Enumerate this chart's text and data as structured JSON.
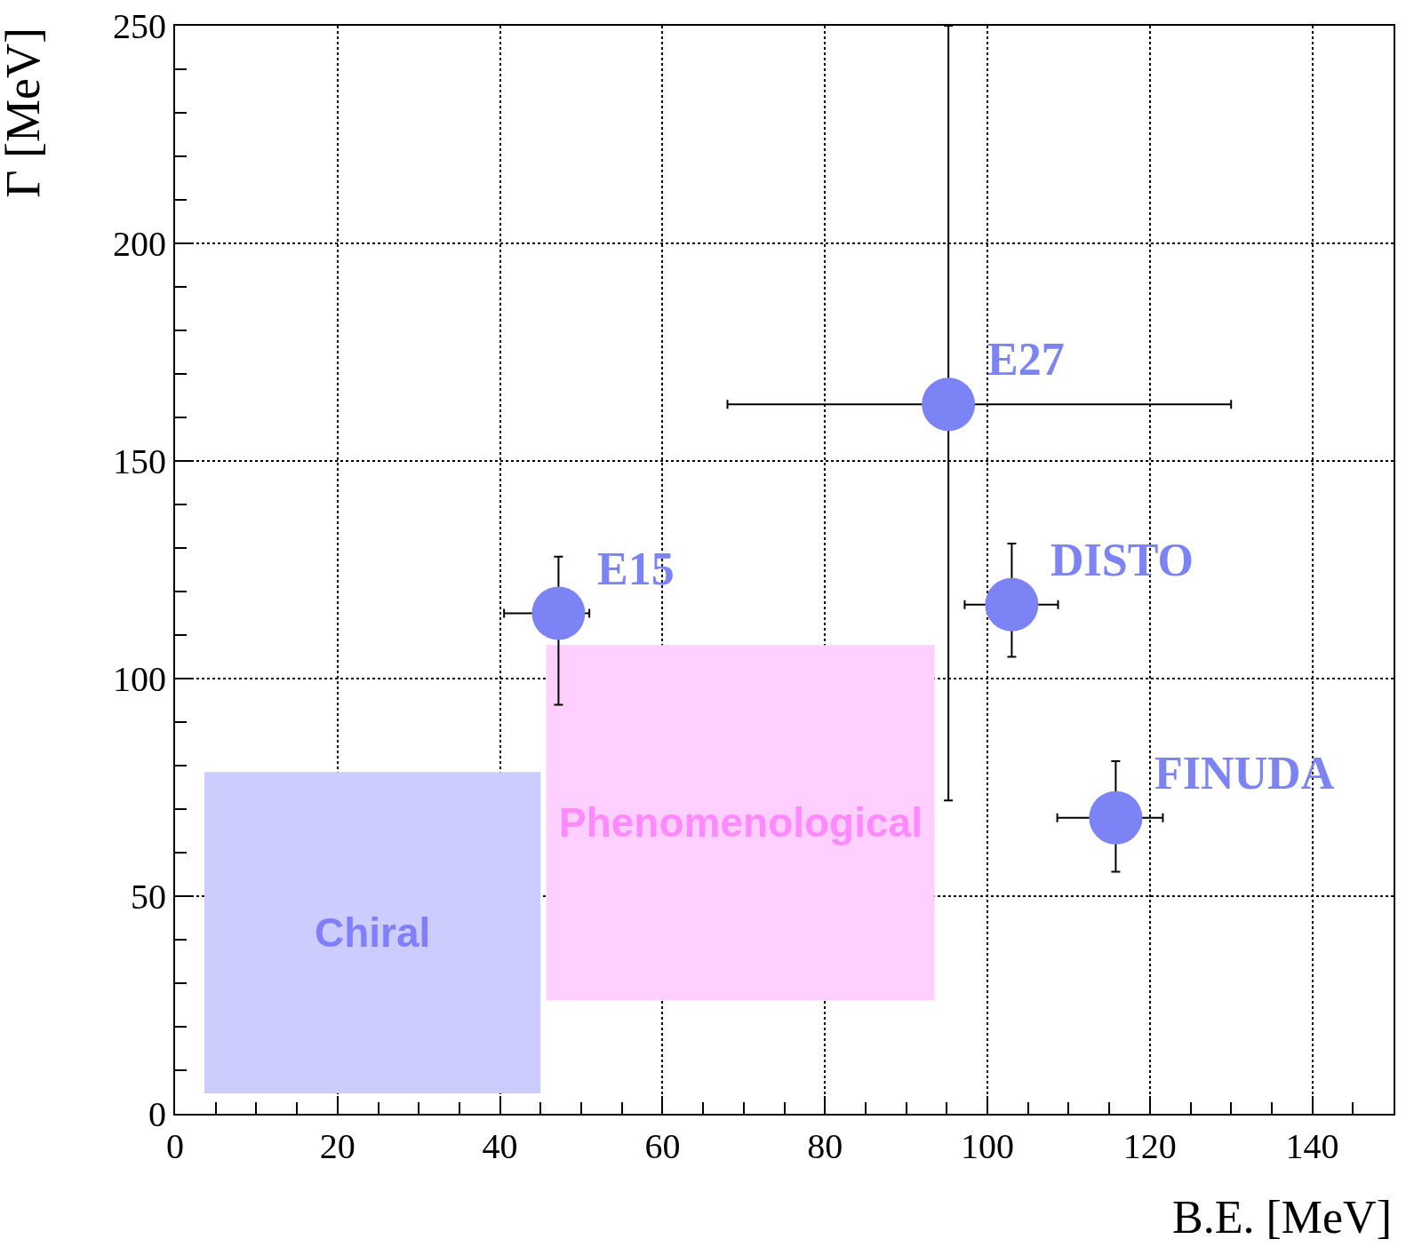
{
  "chart_data": {
    "type": "scatter",
    "xlabel": "B.E. [MeV]",
    "ylabel": "Γ [MeV]",
    "xlim": [
      0,
      150
    ],
    "xticks": [
      0,
      20,
      40,
      60,
      80,
      100,
      120,
      140
    ],
    "ylim": [
      0,
      250
    ],
    "yticks": [
      0,
      50,
      100,
      150,
      200,
      250
    ],
    "grid": true,
    "legend": false,
    "series": [
      {
        "name": "Chiral",
        "type": "area",
        "color": "#ccccff",
        "x": [
          3.6,
          45,
          45,
          3.6,
          3.6
        ],
        "values": [
          4.7,
          4.7,
          78.5,
          78.5,
          4.7
        ]
      },
      {
        "name": "Phenomenological",
        "type": "area",
        "color": "#ffd0ff",
        "x": [
          45.7,
          93.5,
          93.5,
          45.7,
          45.7
        ],
        "values": [
          26,
          26,
          107.7,
          107.7,
          26
        ]
      },
      {
        "name": "E15",
        "color": "#7b83f5",
        "marker": "circle",
        "x": [
          47.2
        ],
        "values": [
          115
        ],
        "errors": [
          [
            94,
            128
          ]
        ],
        "xerrors": [
          [
            40.5,
            51
          ]
        ]
      },
      {
        "name": "E27",
        "color": "#7b83f5",
        "marker": "circle",
        "x": [
          95.2
        ],
        "values": [
          163
        ],
        "errors": [
          [
            72,
            250
          ]
        ],
        "xerrors": [
          [
            68,
            130
          ]
        ]
      },
      {
        "name": "DISTO",
        "color": "#7b83f5",
        "marker": "circle",
        "x": [
          103
        ],
        "values": [
          117
        ],
        "errors": [
          [
            105,
            131
          ]
        ],
        "xerrors": [
          [
            97.2,
            108.7
          ]
        ]
      },
      {
        "name": "FINUDA",
        "color": "#7b83f5",
        "marker": "circle",
        "x": [
          115.8
        ],
        "values": [
          68
        ],
        "errors": [
          [
            55.6,
            81
          ]
        ],
        "xerrors": [
          [
            108.6,
            121.6
          ]
        ]
      }
    ]
  }
}
